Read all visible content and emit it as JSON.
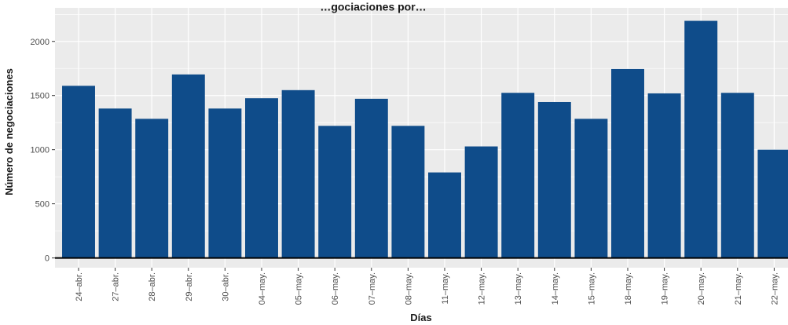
{
  "chart_data": {
    "type": "bar",
    "title": "…gociaciones por…",
    "xlabel": "Días",
    "ylabel": "Número de negociaciones",
    "categories": [
      "24–abr.",
      "27–abr.",
      "28–abr.",
      "29–abr.",
      "30–abr.",
      "04–may.",
      "05–may.",
      "06–may.",
      "07–may.",
      "08–may.",
      "11–may.",
      "12–may.",
      "13–may.",
      "14–may.",
      "15–may.",
      "18–may.",
      "19–may.",
      "20–may.",
      "21–may.",
      "22–may."
    ],
    "values": [
      1590,
      1380,
      1285,
      1695,
      1380,
      1475,
      1550,
      1220,
      1470,
      1220,
      790,
      1030,
      1525,
      1440,
      1285,
      1745,
      1520,
      2190,
      1525,
      1000
    ],
    "ylim": [
      -90,
      2310
    ],
    "yticks": [
      0,
      500,
      1000,
      1500,
      2000
    ],
    "ytick_labels": [
      "0",
      "500",
      "1000",
      "1500",
      "2000"
    ],
    "grid": true,
    "colors": {
      "bar": "#0F4C8A",
      "panel": "#EBEBEB",
      "grid": "#FFFFFF",
      "baseline": "#000000"
    }
  }
}
